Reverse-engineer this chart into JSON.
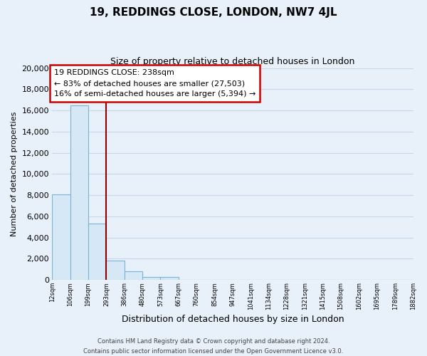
{
  "title_line1": "19, REDDINGS CLOSE, LONDON, NW7 4JL",
  "title_line2": "Size of property relative to detached houses in London",
  "xlabel": "Distribution of detached houses by size in London",
  "ylabel": "Number of detached properties",
  "bin_labels": [
    "12sqm",
    "106sqm",
    "199sqm",
    "293sqm",
    "386sqm",
    "480sqm",
    "573sqm",
    "667sqm",
    "760sqm",
    "854sqm",
    "947sqm",
    "1041sqm",
    "1134sqm",
    "1228sqm",
    "1321sqm",
    "1415sqm",
    "1508sqm",
    "1602sqm",
    "1695sqm",
    "1789sqm",
    "1882sqm"
  ],
  "bar_heights": [
    8100,
    16500,
    5300,
    1800,
    800,
    250,
    250,
    0,
    0,
    0,
    0,
    0,
    0,
    0,
    0,
    0,
    0,
    0,
    0,
    0
  ],
  "bar_color": "#d6e8f5",
  "bar_edge_color": "#7ab3d4",
  "grid_color": "#c5d8ea",
  "annotation_title": "19 REDDINGS CLOSE: 238sqm",
  "annotation_line1": "← 83% of detached houses are smaller (27,503)",
  "annotation_line2": "16% of semi-detached houses are larger (5,394) →",
  "annotation_box_color": "#ffffff",
  "annotation_box_edge": "#cc0000",
  "ylim": [
    0,
    20000
  ],
  "yticks": [
    0,
    2000,
    4000,
    6000,
    8000,
    10000,
    12000,
    14000,
    16000,
    18000,
    20000
  ],
  "footer_line1": "Contains HM Land Registry data © Crown copyright and database right 2024.",
  "footer_line2": "Contains public sector information licensed under the Open Government Licence v3.0.",
  "background_color": "#e8f0fa",
  "plot_background_color": "#e8f0fa",
  "red_line_color": "#8b0000",
  "title_fontsize": 11,
  "subtitle_fontsize": 9,
  "ylabel_text": "Number of detached properties"
}
